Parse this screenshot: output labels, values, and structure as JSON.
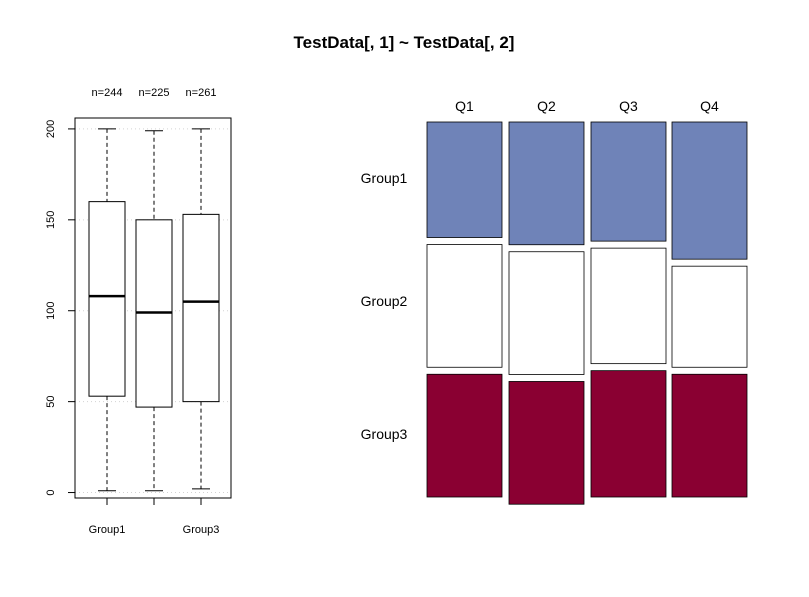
{
  "title": "TestData[, 1] ~ TestData[, 2]",
  "chart_data": [
    {
      "type": "box",
      "ylim": [
        -3,
        206
      ],
      "yticks": [
        0,
        50,
        100,
        150,
        200
      ],
      "grid": true,
      "x_tick_labels": [
        "Group1",
        "",
        "Group3"
      ],
      "groups": [
        {
          "label": "Group1",
          "n_label": "n=244",
          "min": 1,
          "q1": 53,
          "median": 108,
          "q3": 160,
          "max": 200
        },
        {
          "label": "Group2",
          "n_label": "n=225",
          "min": 1,
          "q1": 47,
          "median": 99,
          "q3": 150,
          "max": 199
        },
        {
          "label": "Group3",
          "n_label": "n=261",
          "min": 2,
          "q1": 50,
          "median": 105,
          "q3": 153,
          "max": 200
        }
      ]
    },
    {
      "type": "mosaic",
      "columns": [
        "Q1",
        "Q2",
        "Q3",
        "Q4"
      ],
      "rows": [
        "Group1",
        "Group2",
        "Group3"
      ],
      "proportions": [
        [
          0.32,
          0.34,
          0.34
        ],
        [
          0.34,
          0.34,
          0.34
        ],
        [
          0.33,
          0.32,
          0.35
        ],
        [
          0.38,
          0.28,
          0.34
        ]
      ],
      "colors": [
        "#6f83b8",
        "#ffffff",
        "#8a0032"
      ]
    }
  ]
}
